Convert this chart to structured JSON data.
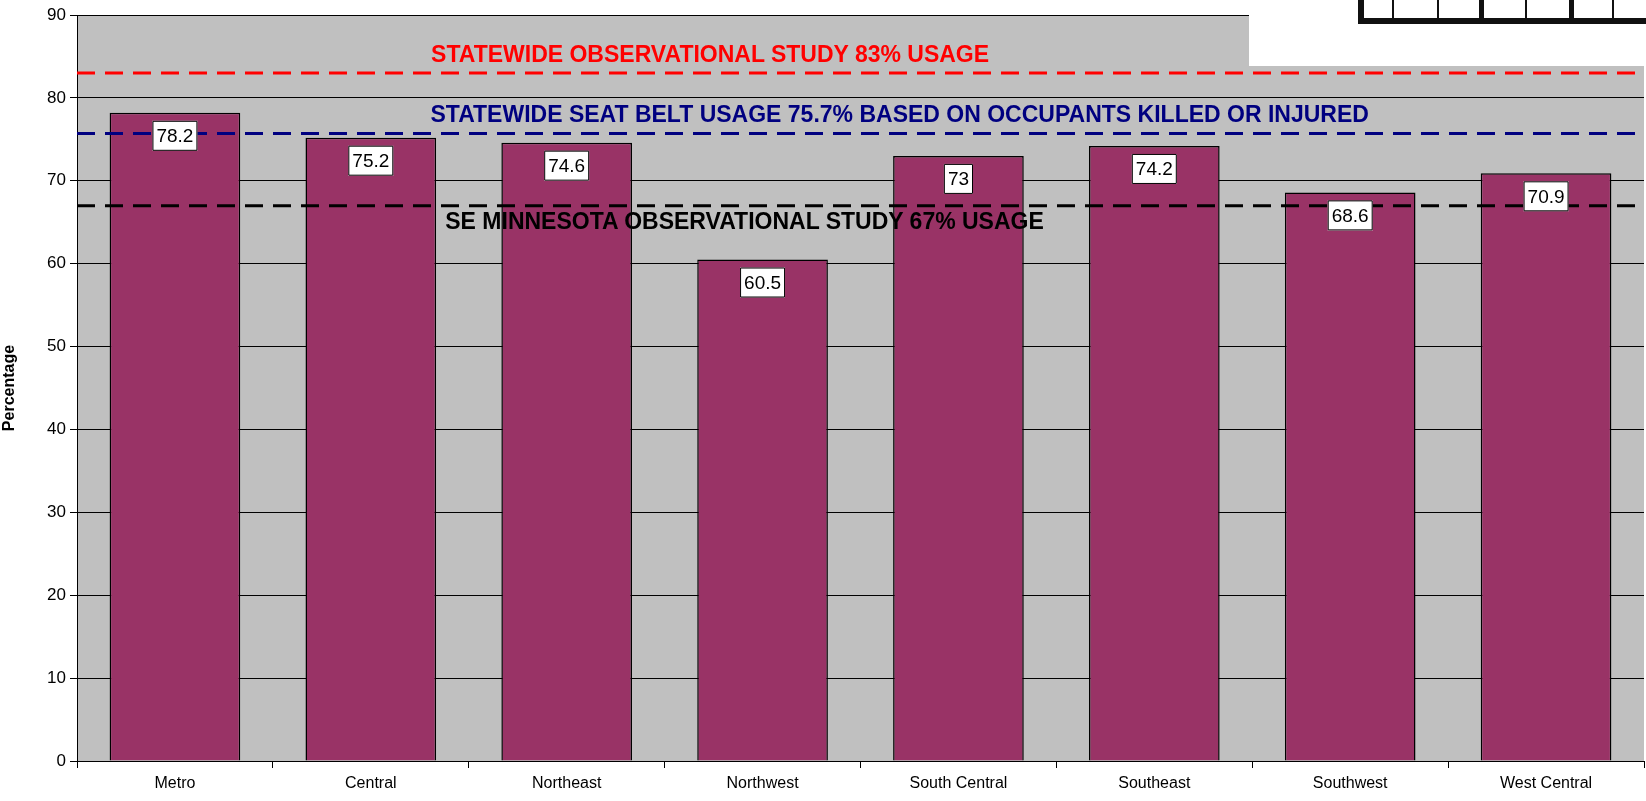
{
  "chart_data": {
    "type": "bar",
    "categories": [
      "Metro",
      "Central",
      "Northeast",
      "Northwest",
      "South Central",
      "Southeast",
      "Southwest",
      "West Central"
    ],
    "values": [
      78.2,
      75.2,
      74.6,
      60.5,
      73,
      74.2,
      68.6,
      70.9
    ],
    "color": "#993366",
    "ylabel": "Percentage",
    "ylim": [
      0,
      90
    ],
    "yticks": [
      0,
      10,
      20,
      30,
      40,
      50,
      60,
      70,
      80,
      90
    ],
    "grid": "y",
    "data_labels": true,
    "ref_lines": [
      {
        "axis": "y",
        "value": 83,
        "label": "STATEWIDE OBSERVATIONAL STUDY 83% USAGE",
        "color": "#ff0000",
        "line_style": "dashed"
      },
      {
        "axis": "y",
        "value": 75.7,
        "label": "STATEWIDE SEAT BELT USAGE 75.7% BASED ON OCCUPANTS KILLED OR INJURED",
        "color": "#000080",
        "line_style": "dashed"
      },
      {
        "axis": "y",
        "value": 67,
        "label": "SE MINNESOTA OBSERVATIONAL STUDY 67% USAGE",
        "color": "#000000",
        "line_style": "dashed"
      }
    ]
  }
}
